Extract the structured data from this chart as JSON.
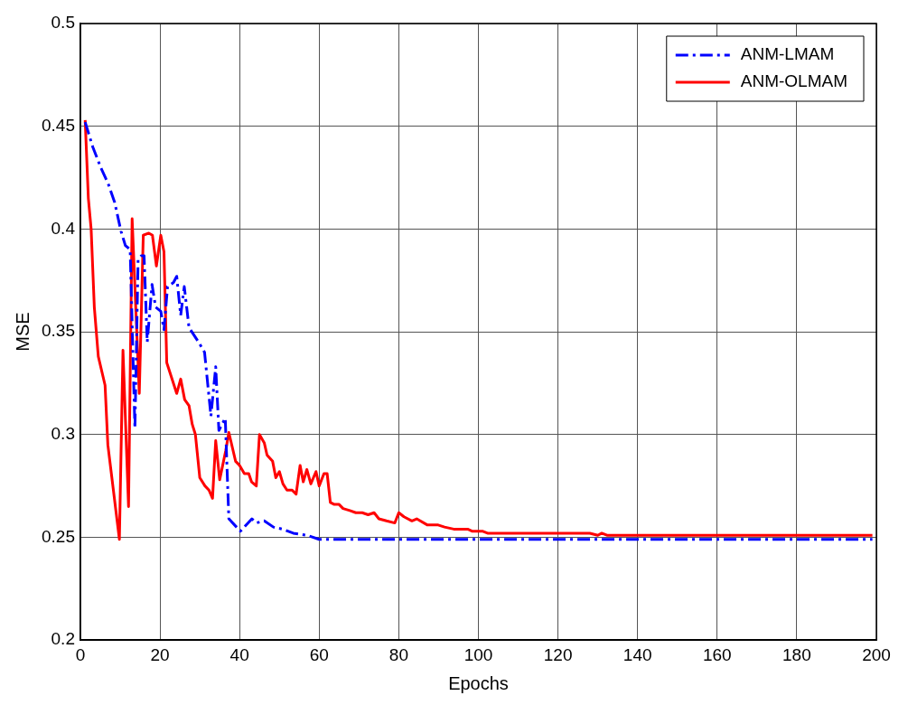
{
  "chart_data": {
    "type": "line",
    "xlabel": "Epochs",
    "ylabel": "MSE",
    "xlim": [
      0,
      200
    ],
    "xticks": [
      0,
      20,
      40,
      60,
      80,
      100,
      120,
      140,
      160,
      180,
      200
    ],
    "ylim": [
      0.2,
      0.5
    ],
    "yticks": [
      0.2,
      0.25,
      0.3,
      0.35,
      0.4,
      0.45,
      0.5
    ],
    "grid": true,
    "legend": "top right",
    "marker": "none",
    "series": [
      {
        "name": "ANM-LMAM",
        "color": "#0000ff",
        "line_style": "dashed",
        "x": [
          1.2,
          3.1,
          5.1,
          7,
          8.6,
          10.2,
          11.3,
          12.5,
          13.7,
          14.5,
          15.3,
          16,
          16.8,
          18,
          18.9,
          20.2,
          21,
          21.9,
          23.4,
          24.2,
          25.2,
          26.1,
          27.3,
          29.7,
          31.2,
          32.8,
          34,
          34.8,
          36.4,
          37.3,
          40.2,
          43.1,
          44.2,
          46.2,
          48.5,
          50.8,
          53.5,
          57,
          60,
          199
        ],
        "values": [
          0.452,
          0.44,
          0.43,
          0.422,
          0.413,
          0.399,
          0.392,
          0.39,
          0.303,
          0.385,
          0.387,
          0.387,
          0.345,
          0.373,
          0.362,
          0.36,
          0.351,
          0.372,
          0.374,
          0.377,
          0.358,
          0.372,
          0.352,
          0.345,
          0.34,
          0.309,
          0.333,
          0.302,
          0.308,
          0.259,
          0.253,
          0.259,
          0.257,
          0.258,
          0.255,
          0.254,
          0.252,
          0.251,
          0.249,
          0.249
        ]
      },
      {
        "name": "ANM-OLMAM",
        "color": "#ff0000",
        "line_style": "solid",
        "x": [
          1.2,
          2,
          2.7,
          3.5,
          4.5,
          6.2,
          6.9,
          9.8,
          10.7,
          12.1,
          13,
          14.8,
          15.8,
          17.2,
          18.1,
          19.1,
          20.2,
          21,
          21.7,
          24.2,
          25.2,
          26.2,
          27.3,
          28.1,
          28.9,
          30,
          31.3,
          32.3,
          33.2,
          34,
          35,
          36.5,
          37.3,
          39,
          40,
          41.2,
          42.3,
          43,
          44.2,
          45,
          46.2,
          46.9,
          48.3,
          49.1,
          50,
          50.9,
          51.9,
          53.2,
          54.2,
          55.2,
          56,
          56.9,
          57.9,
          59.2,
          60,
          61.2,
          62,
          62.8,
          63.8,
          65,
          66,
          67.7,
          69.2,
          70.8,
          72.3,
          73.8,
          75,
          76.9,
          79,
          80,
          81.3,
          83.3,
          84.5,
          87.2,
          89.9,
          91.5,
          93.8,
          97.3,
          98.4,
          101,
          102.3,
          128,
          130,
          131,
          132.3,
          199
        ],
        "values": [
          0.453,
          0.415,
          0.4,
          0.362,
          0.338,
          0.324,
          0.295,
          0.249,
          0.341,
          0.265,
          0.405,
          0.32,
          0.397,
          0.398,
          0.397,
          0.382,
          0.397,
          0.389,
          0.335,
          0.32,
          0.327,
          0.317,
          0.314,
          0.305,
          0.3,
          0.279,
          0.275,
          0.273,
          0.269,
          0.297,
          0.278,
          0.292,
          0.301,
          0.287,
          0.285,
          0.281,
          0.281,
          0.277,
          0.275,
          0.3,
          0.296,
          0.29,
          0.287,
          0.279,
          0.282,
          0.276,
          0.273,
          0.273,
          0.271,
          0.285,
          0.277,
          0.283,
          0.276,
          0.282,
          0.275,
          0.281,
          0.281,
          0.267,
          0.266,
          0.266,
          0.264,
          0.263,
          0.262,
          0.262,
          0.261,
          0.262,
          0.259,
          0.258,
          0.257,
          0.262,
          0.26,
          0.258,
          0.259,
          0.256,
          0.256,
          0.255,
          0.254,
          0.254,
          0.253,
          0.253,
          0.252,
          0.252,
          0.251,
          0.252,
          0.251,
          0.251
        ]
      }
    ]
  }
}
